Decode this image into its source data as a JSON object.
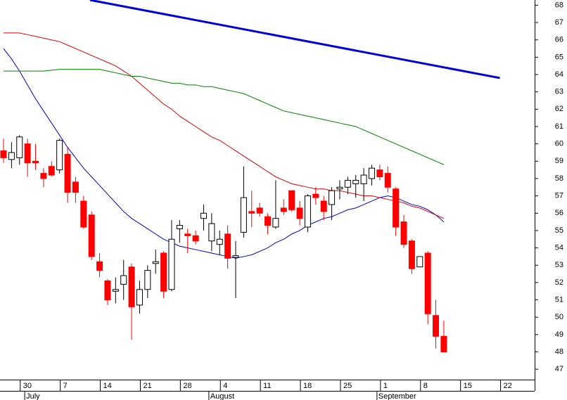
{
  "chart_data": {
    "type": "candlestick",
    "categories": [
      null,
      null,
      "30",
      null,
      null,
      null,
      null,
      "7",
      null,
      null,
      null,
      null,
      "14",
      null,
      null,
      null,
      null,
      "21",
      null,
      null,
      null,
      null,
      "28",
      null,
      null,
      null,
      null,
      "4",
      null,
      null,
      null,
      null,
      "11",
      null,
      null,
      null,
      null,
      "18",
      null,
      null,
      null,
      null,
      "25",
      null,
      null,
      null,
      null,
      "1",
      null,
      null,
      null,
      null,
      "8",
      null,
      null,
      null,
      null,
      "15",
      null,
      null,
      null,
      null,
      "22",
      null
    ],
    "month_categories": [
      null,
      null,
      null,
      "July",
      null,
      null,
      null,
      null,
      null,
      null,
      null,
      null,
      null,
      null,
      null,
      null,
      null,
      null,
      null,
      null,
      null,
      null,
      null,
      null,
      null,
      null,
      "August",
      null,
      null,
      null,
      null,
      null,
      null,
      null,
      null,
      null,
      null,
      null,
      null,
      null,
      null,
      null,
      null,
      null,
      null,
      null,
      null,
      "September",
      null,
      null,
      null,
      null,
      null,
      null,
      null,
      null,
      null,
      null,
      null,
      null,
      null,
      null,
      null,
      null
    ],
    "open": [
      59.6,
      59.1,
      59.2,
      60.0,
      59.0,
      58.3,
      58.7,
      58.5,
      59.4,
      57.8,
      56.7,
      55.9,
      53.2,
      52.1,
      51.5,
      51.9,
      52.9,
      50.7,
      51.6,
      53.1,
      53.7,
      51.6,
      55.1,
      54.8,
      54.7,
      55.7,
      54.4,
      54.2,
      54.8,
      53.45,
      54.9,
      56.1,
      56.3,
      55.8,
      55.2,
      56.3,
      57.3,
      56.3,
      55.2,
      57.1,
      56.7,
      56.5,
      57.4,
      57.5,
      57.7,
      57.7,
      58.0,
      58.5,
      58.3,
      57.4,
      55.5,
      54.4,
      52.9,
      53.7,
      50.1,
      48.9,
      null,
      null,
      null,
      null,
      null,
      null,
      null,
      null
    ],
    "high": [
      60.3,
      60.1,
      60.5,
      60.3,
      60.0,
      58.6,
      59.0,
      60.3,
      59.8,
      58.1,
      57.0,
      56.1,
      53.7,
      52.2,
      52.3,
      53.3,
      53.1,
      52.1,
      53.0,
      53.9,
      53.8,
      55.6,
      55.6,
      55.1,
      55.0,
      56.5,
      56.0,
      55.0,
      55.3,
      54.4,
      58.7,
      57.3,
      56.6,
      56.0,
      57.9,
      56.8,
      57.3,
      56.7,
      57.1,
      57.5,
      57.0,
      57.5,
      57.9,
      58.1,
      58.2,
      58.6,
      58.8,
      58.8,
      58.7,
      57.5,
      55.9,
      54.5,
      53.5,
      53.8,
      51.0,
      49.8,
      null,
      null,
      null,
      null,
      null,
      null,
      null,
      null
    ],
    "low": [
      58.9,
      58.6,
      58.8,
      58.1,
      58.5,
      57.5,
      58.1,
      58.3,
      56.6,
      56.6,
      55.1,
      53.3,
      52.3,
      50.7,
      50.8,
      51.0,
      48.7,
      50.2,
      51.1,
      52.5,
      51.1,
      51.5,
      54.3,
      53.7,
      54.2,
      55.0,
      53.8,
      53.6,
      52.8,
      51.1,
      54.6,
      55.2,
      55.8,
      54.8,
      55.1,
      55.9,
      56.1,
      55.3,
      54.9,
      56.5,
      55.6,
      55.6,
      56.8,
      57.1,
      56.9,
      56.7,
      57.6,
      57.9,
      57.2,
      54.7,
      54.0,
      52.5,
      52.9,
      49.6,
      48.2,
      48.0,
      null,
      null,
      null,
      null,
      null,
      null,
      null,
      null
    ],
    "close": [
      59.2,
      59.5,
      60.4,
      58.9,
      58.9,
      58.0,
      58.2,
      60.2,
      57.2,
      57.2,
      55.2,
      53.5,
      52.7,
      51.0,
      51.6,
      52.4,
      50.6,
      51.6,
      52.7,
      53.2,
      51.5,
      54.5,
      55.3,
      54.7,
      54.4,
      56.0,
      55.4,
      54.5,
      53.4,
      53.55,
      56.9,
      56.0,
      56.0,
      55.3,
      55.7,
      56.1,
      56.2,
      55.7,
      57.0,
      56.9,
      56.1,
      57.3,
      57.5,
      57.9,
      57.9,
      58.2,
      58.6,
      58.1,
      57.5,
      55.2,
      54.2,
      52.8,
      53.5,
      50.2,
      48.9,
      48.0,
      null,
      null,
      null,
      null,
      null,
      null,
      null,
      null
    ],
    "up_color": "#ffffff",
    "down_color": "#ff0000",
    "lines": [
      {
        "color": "#0000cc",
        "values": [
          65.5,
          64.9,
          64.2,
          63.4,
          62.6,
          61.9,
          61.2,
          60.5,
          59.8,
          59.2,
          58.6,
          58.1,
          57.6,
          57.1,
          56.6,
          56.1,
          55.7,
          55.4,
          55.1,
          54.8,
          54.5,
          54.3,
          54.1,
          54.0,
          53.9,
          53.8,
          53.7,
          53.6,
          53.5,
          53.4,
          53.5,
          53.6,
          53.8,
          54.0,
          54.3,
          54.5,
          54.8,
          55.0,
          55.3,
          55.5,
          55.7,
          55.8,
          56.0,
          56.2,
          56.3,
          56.5,
          56.7,
          56.9,
          57.0,
          56.9,
          56.7,
          56.5,
          56.4,
          56.2,
          55.9,
          55.5,
          null,
          null,
          null,
          null,
          null,
          null,
          null,
          null
        ]
      },
      {
        "color": "#e00000",
        "values": [
          66.4,
          66.4,
          66.4,
          66.3,
          66.2,
          66.1,
          66.0,
          65.9,
          65.7,
          65.5,
          65.3,
          65.1,
          64.9,
          64.7,
          64.5,
          64.2,
          63.9,
          63.5,
          63.1,
          62.7,
          62.3,
          62.0,
          61.6,
          61.3,
          61.0,
          60.7,
          60.4,
          60.2,
          59.9,
          59.6,
          59.3,
          59.0,
          58.7,
          58.4,
          58.1,
          57.9,
          57.7,
          57.6,
          57.5,
          57.4,
          57.4,
          57.3,
          57.3,
          57.2,
          57.1,
          57.0,
          57.0,
          56.9,
          56.8,
          56.7,
          56.6,
          56.4,
          56.3,
          56.1,
          55.9,
          55.7,
          null,
          null,
          null,
          null,
          null,
          null,
          null,
          null
        ]
      },
      {
        "color": "#008000",
        "values": [
          64.2,
          64.2,
          64.2,
          64.2,
          64.2,
          64.2,
          64.25,
          64.3,
          64.3,
          64.3,
          64.3,
          64.3,
          64.3,
          64.2,
          64.1,
          64.0,
          63.9,
          63.9,
          63.8,
          63.7,
          63.6,
          63.5,
          63.5,
          63.4,
          63.4,
          63.3,
          63.3,
          63.2,
          63.1,
          63.0,
          62.9,
          62.7,
          62.5,
          62.3,
          62.1,
          61.9,
          61.8,
          61.7,
          61.6,
          61.5,
          61.4,
          61.3,
          61.2,
          61.1,
          61.0,
          60.8,
          60.6,
          60.4,
          60.2,
          60.0,
          59.8,
          59.6,
          59.4,
          59.2,
          59.0,
          58.8,
          null,
          null,
          null,
          null,
          null,
          null,
          null,
          null
        ]
      }
    ],
    "trendline": {
      "color": "#0000dd",
      "x": [
        10.8,
        62
      ],
      "values": [
        68.3,
        63.8
      ]
    },
    "ylim": [
      46.4,
      68.3
    ],
    "yticks": [
      47,
      48,
      49,
      50,
      51,
      52,
      53,
      54,
      55,
      56,
      57,
      58,
      59,
      60,
      61,
      62,
      63,
      64,
      65,
      66,
      67,
      68
    ]
  }
}
